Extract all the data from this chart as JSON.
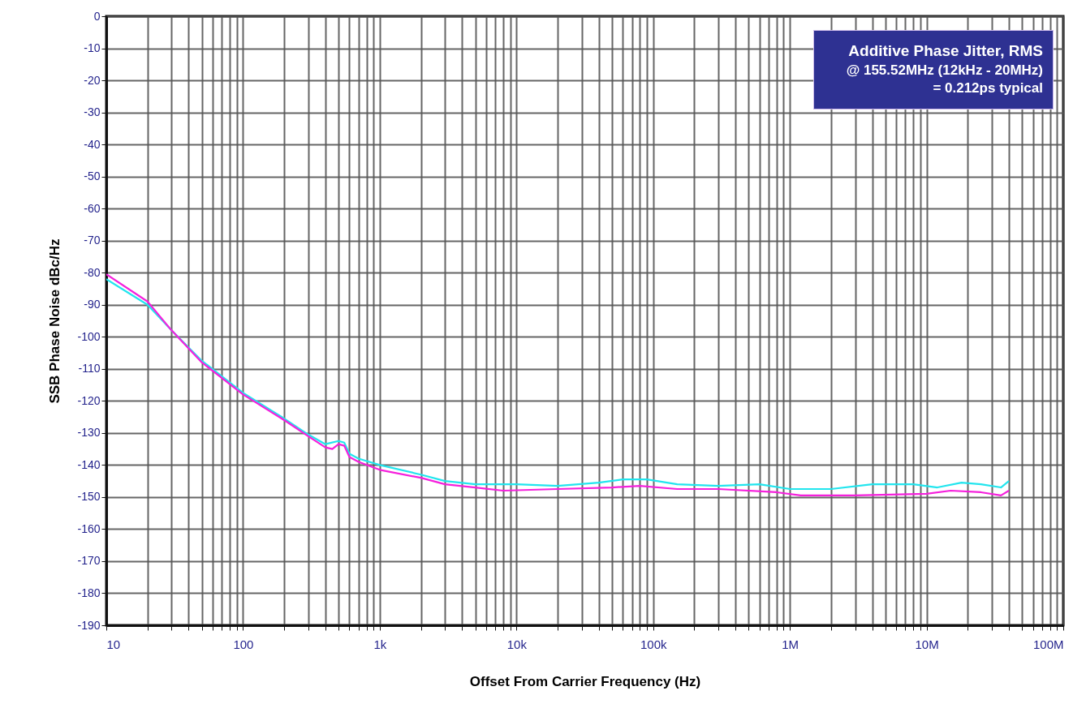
{
  "chart_data": {
    "type": "line",
    "xlabel": "Offset From Carrier Frequency (Hz)",
    "ylabel": "SSB Phase Noise dBc/Hz",
    "log": "x",
    "grid": true,
    "marker": "none",
    "line_style": "solid",
    "annotations": [
      "Additive Phase Jitter, RMS",
      "@ 155.52MHz (12kHz - 20MHz)",
      "= 0.212ps typical"
    ],
    "xlim": [
      10,
      100000000
    ],
    "ylim": [
      -190,
      0
    ],
    "xticks": [
      {
        "value": 10,
        "label": "10"
      },
      {
        "value": 20,
        "label": null
      },
      {
        "value": 30,
        "label": null
      },
      {
        "value": 40,
        "label": null
      },
      {
        "value": 50,
        "label": null
      },
      {
        "value": 60,
        "label": null
      },
      {
        "value": 70,
        "label": null
      },
      {
        "value": 80,
        "label": null
      },
      {
        "value": 90,
        "label": null
      },
      {
        "value": 100,
        "label": "100"
      },
      {
        "value": 200,
        "label": null
      },
      {
        "value": 300,
        "label": null
      },
      {
        "value": 400,
        "label": null
      },
      {
        "value": 500,
        "label": null
      },
      {
        "value": 600,
        "label": null
      },
      {
        "value": 700,
        "label": null
      },
      {
        "value": 800,
        "label": null
      },
      {
        "value": 900,
        "label": null
      },
      {
        "value": 1000,
        "label": "1k"
      },
      {
        "value": 2000,
        "label": null
      },
      {
        "value": 3000,
        "label": null
      },
      {
        "value": 4000,
        "label": null
      },
      {
        "value": 5000,
        "label": null
      },
      {
        "value": 6000,
        "label": null
      },
      {
        "value": 7000,
        "label": null
      },
      {
        "value": 8000,
        "label": null
      },
      {
        "value": 9000,
        "label": null
      },
      {
        "value": 10000,
        "label": "10k"
      },
      {
        "value": 20000,
        "label": null
      },
      {
        "value": 30000,
        "label": null
      },
      {
        "value": 40000,
        "label": null
      },
      {
        "value": 50000,
        "label": null
      },
      {
        "value": 60000,
        "label": null
      },
      {
        "value": 70000,
        "label": null
      },
      {
        "value": 80000,
        "label": null
      },
      {
        "value": 90000,
        "label": null
      },
      {
        "value": 100000,
        "label": "100k"
      },
      {
        "value": 200000,
        "label": null
      },
      {
        "value": 300000,
        "label": null
      },
      {
        "value": 400000,
        "label": null
      },
      {
        "value": 500000,
        "label": null
      },
      {
        "value": 600000,
        "label": null
      },
      {
        "value": 700000,
        "label": null
      },
      {
        "value": 800000,
        "label": null
      },
      {
        "value": 900000,
        "label": null
      },
      {
        "value": 1000000,
        "label": "1M"
      },
      {
        "value": 2000000,
        "label": null
      },
      {
        "value": 3000000,
        "label": null
      },
      {
        "value": 4000000,
        "label": null
      },
      {
        "value": 5000000,
        "label": null
      },
      {
        "value": 6000000,
        "label": null
      },
      {
        "value": 7000000,
        "label": null
      },
      {
        "value": 8000000,
        "label": null
      },
      {
        "value": 9000000,
        "label": null
      },
      {
        "value": 10000000,
        "label": "10M"
      },
      {
        "value": 20000000,
        "label": null
      },
      {
        "value": 30000000,
        "label": null
      },
      {
        "value": 40000000,
        "label": null
      },
      {
        "value": 50000000,
        "label": null
      },
      {
        "value": 60000000,
        "label": null
      },
      {
        "value": 70000000,
        "label": null
      },
      {
        "value": 80000000,
        "label": null
      },
      {
        "value": 90000000,
        "label": null
      },
      {
        "value": 100000000,
        "label": "100M"
      }
    ],
    "yticks": [
      0,
      -10,
      -20,
      -30,
      -40,
      -50,
      -60,
      -70,
      -80,
      -90,
      -100,
      -110,
      -120,
      -130,
      -140,
      -150,
      -160,
      -170,
      -180,
      -190
    ],
    "series": [
      {
        "color": "#22e5ee",
        "x": [
          10,
          20,
          30,
          50,
          100,
          200,
          300,
          400,
          500,
          550,
          600,
          700,
          1000,
          2000,
          3000,
          5000,
          10000,
          20000,
          40000,
          60000,
          90000,
          150000,
          300000,
          600000,
          1000000,
          2000000,
          4000000,
          8000000,
          12000000,
          18000000,
          25000000,
          35000000,
          40000000
        ],
        "values": [
          -82,
          -90,
          -98,
          -107.5,
          -117.5,
          -125.5,
          -130.5,
          -133.5,
          -132.5,
          -133,
          -136.5,
          -138,
          -140,
          -143,
          -145,
          -146,
          -146,
          -146.5,
          -145.5,
          -144.5,
          -144.5,
          -146,
          -146.5,
          -146,
          -147.5,
          -147.5,
          -146,
          -146,
          -147,
          -145.5,
          -146,
          -147,
          -145
        ]
      },
      {
        "color": "#f520dc",
        "x": [
          10,
          20,
          30,
          50,
          100,
          200,
          300,
          400,
          450,
          500,
          550,
          600,
          700,
          1000,
          2000,
          3000,
          5000,
          8000,
          20000,
          50000,
          80000,
          150000,
          300000,
          800000,
          1200000,
          3000000,
          10000000,
          15000000,
          25000000,
          35000000,
          40000000
        ],
        "values": [
          -80.5,
          -89,
          -98,
          -108,
          -118,
          -126,
          -131,
          -134.5,
          -135,
          -133.5,
          -134,
          -137.5,
          -139,
          -141.5,
          -144,
          -146,
          -147,
          -148,
          -147.5,
          -147,
          -146.5,
          -147.5,
          -147.5,
          -148.5,
          -149.5,
          -149.5,
          -149,
          -148,
          -148.5,
          -149.5,
          -148
        ]
      }
    ]
  }
}
